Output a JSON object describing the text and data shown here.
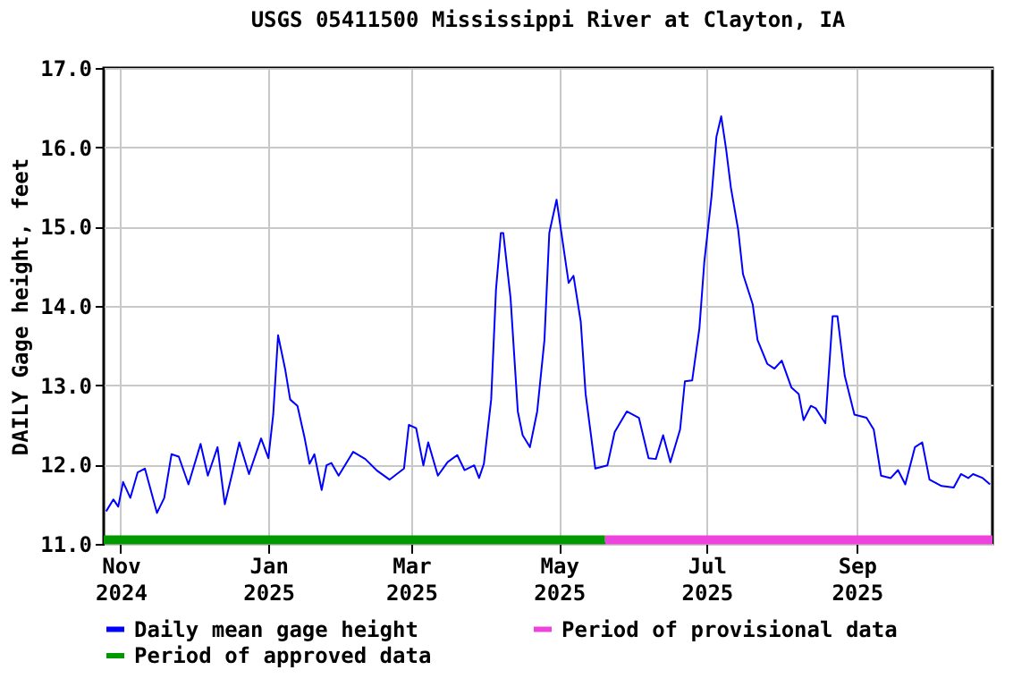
{
  "chart_data": {
    "type": "line",
    "title": "USGS 05411500 Mississippi River at Clayton, IA",
    "ylabel": "DAILY Gage height, feet",
    "xlim": [
      "2024-10-25",
      "2025-10-27"
    ],
    "ylim": [
      11,
      17
    ],
    "xticks": [
      {
        "value": "2024-11-01",
        "label": "Nov 2024"
      },
      {
        "value": "2025-01-01",
        "label": "Jan 2025"
      },
      {
        "value": "2025-03-01",
        "label": "Mar 2025"
      },
      {
        "value": "2025-05-01",
        "label": "May 2025"
      },
      {
        "value": "2025-07-01",
        "label": "Jul 2025"
      },
      {
        "value": "2025-09-01",
        "label": "Sep 2025"
      }
    ],
    "yticks": [
      {
        "value": 11,
        "label": "11.0"
      },
      {
        "value": 12,
        "label": "12.0"
      },
      {
        "value": 13,
        "label": "13.0"
      },
      {
        "value": 14,
        "label": "14.0"
      },
      {
        "value": 15,
        "label": "15.0"
      },
      {
        "value": 16,
        "label": "16.0"
      },
      {
        "value": 17,
        "label": "17.0"
      }
    ],
    "grid": true,
    "legend": "bottom",
    "marker": "none",
    "line_style": "solid",
    "x": [
      "2024-10-26",
      "2024-10-29",
      "2024-10-31",
      "2024-11-02",
      "2024-11-05",
      "2024-11-08",
      "2024-11-11",
      "2024-11-16",
      "2024-11-19",
      "2024-11-22",
      "2024-11-25",
      "2024-11-29",
      "2024-12-04",
      "2024-12-07",
      "2024-12-11",
      "2024-12-14",
      "2024-12-17",
      "2024-12-20",
      "2024-12-24",
      "2024-12-29",
      "2025-01-01",
      "2025-01-03",
      "2025-01-05",
      "2025-01-08",
      "2025-01-10",
      "2025-01-13",
      "2025-01-16",
      "2025-01-18",
      "2025-01-20",
      "2025-01-23",
      "2025-01-25",
      "2025-01-27",
      "2025-01-30",
      "2025-02-05",
      "2025-02-10",
      "2025-02-15",
      "2025-02-20",
      "2025-02-26",
      "2025-02-28",
      "2025-03-03",
      "2025-03-06",
      "2025-03-08",
      "2025-03-12",
      "2025-03-16",
      "2025-03-20",
      "2025-03-23",
      "2025-03-27",
      "2025-03-29",
      "2025-03-31",
      "2025-04-03",
      "2025-04-05",
      "2025-04-07",
      "2025-04-08",
      "2025-04-11",
      "2025-04-14",
      "2025-04-16",
      "2025-04-19",
      "2025-04-22",
      "2025-04-25",
      "2025-04-27",
      "2025-04-30",
      "2025-05-02",
      "2025-05-05",
      "2025-05-07",
      "2025-05-10",
      "2025-05-12",
      "2025-05-16",
      "2025-05-21",
      "2025-05-24",
      "2025-05-29",
      "2025-06-03",
      "2025-06-07",
      "2025-06-10",
      "2025-06-13",
      "2025-06-16",
      "2025-06-20",
      "2025-06-22",
      "2025-06-25",
      "2025-06-28",
      "2025-06-30",
      "2025-07-03",
      "2025-07-05",
      "2025-07-07",
      "2025-07-09",
      "2025-07-11",
      "2025-07-14",
      "2025-07-16",
      "2025-07-20",
      "2025-07-22",
      "2025-07-26",
      "2025-07-29",
      "2025-08-01",
      "2025-08-05",
      "2025-08-08",
      "2025-08-10",
      "2025-08-13",
      "2025-08-15",
      "2025-08-19",
      "2025-08-22",
      "2025-08-24",
      "2025-08-27",
      "2025-08-31",
      "2025-09-05",
      "2025-09-08",
      "2025-09-11",
      "2025-09-15",
      "2025-09-18",
      "2025-09-21",
      "2025-09-25",
      "2025-09-28",
      "2025-10-01",
      "2025-10-06",
      "2025-10-11",
      "2025-10-14",
      "2025-10-17",
      "2025-10-19",
      "2025-10-23",
      "2025-10-26"
    ],
    "series": [
      {
        "name": "Daily mean gage height",
        "color": "#0000ff",
        "values": [
          11.41,
          11.56,
          11.47,
          11.78,
          11.58,
          11.9,
          11.95,
          11.39,
          11.58,
          12.13,
          12.1,
          11.75,
          12.26,
          11.86,
          12.22,
          11.5,
          11.88,
          12.28,
          11.88,
          12.33,
          12.08,
          12.63,
          13.63,
          13.19,
          12.82,
          12.74,
          12.33,
          12.01,
          12.13,
          11.68,
          11.99,
          12.02,
          11.86,
          12.16,
          12.07,
          11.92,
          11.81,
          11.95,
          12.5,
          12.46,
          11.99,
          12.28,
          11.86,
          12.03,
          12.12,
          11.93,
          11.99,
          11.83,
          12.01,
          12.82,
          14.21,
          14.92,
          14.92,
          14.1,
          12.67,
          12.37,
          12.22,
          12.67,
          13.57,
          14.92,
          15.34,
          14.92,
          14.29,
          14.38,
          13.8,
          12.89,
          11.95,
          11.99,
          12.41,
          12.67,
          12.59,
          12.08,
          12.07,
          12.37,
          12.03,
          12.44,
          13.05,
          13.06,
          13.72,
          14.55,
          15.38,
          16.13,
          16.39,
          15.98,
          15.49,
          14.96,
          14.4,
          14.02,
          13.57,
          13.27,
          13.21,
          13.31,
          12.97,
          12.89,
          12.56,
          12.74,
          12.71,
          12.52,
          13.87,
          13.87,
          13.12,
          12.63,
          12.59,
          12.44,
          11.86,
          11.83,
          11.93,
          11.75,
          12.22,
          12.28,
          11.81,
          11.73,
          11.71,
          11.88,
          11.83,
          11.88,
          11.83,
          11.75
        ]
      },
      {
        "name": "Period of provisional data",
        "color": "#ee44dd",
        "x": [
          "2025-05-20",
          "2025-10-27"
        ],
        "values": [
          11.05,
          11.05
        ]
      },
      {
        "name": "Period of approved data",
        "color": "#009900",
        "x": [
          "2024-10-25",
          "2025-05-20"
        ],
        "values": [
          11.05,
          11.05
        ]
      }
    ]
  }
}
